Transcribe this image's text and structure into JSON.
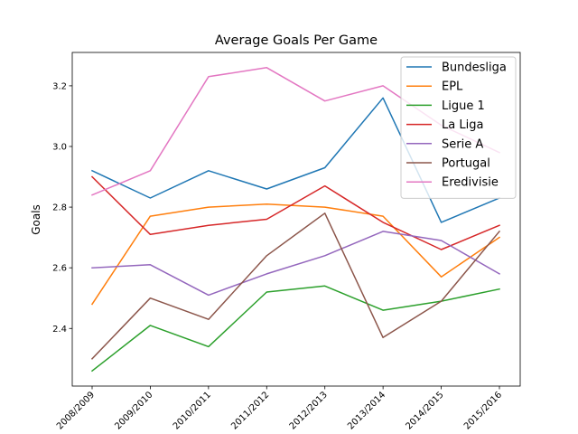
{
  "chart_data": {
    "type": "line",
    "title": "Average Goals Per Game",
    "xlabel": "",
    "ylabel": "Goals",
    "categories": [
      "2008/2009",
      "2009/2010",
      "2010/2011",
      "2011/2012",
      "2012/2013",
      "2013/2014",
      "2014/2015",
      "2015/2016"
    ],
    "ylim": [
      2.21,
      3.31
    ],
    "yticks": [
      2.4,
      2.6,
      2.8,
      3.0,
      3.2
    ],
    "ytick_labels": [
      "2.4",
      "2.6",
      "2.8",
      "3.0",
      "3.2"
    ],
    "grid": false,
    "legend_position": "top-right",
    "series": [
      {
        "name": "Bundesliga",
        "color": "#1f77b4",
        "values": [
          2.92,
          2.83,
          2.92,
          2.86,
          2.93,
          3.16,
          2.75,
          2.83
        ]
      },
      {
        "name": "EPL",
        "color": "#ff7f0e",
        "values": [
          2.48,
          2.77,
          2.8,
          2.81,
          2.8,
          2.77,
          2.57,
          2.7
        ]
      },
      {
        "name": "Ligue 1",
        "color": "#2ca02c",
        "values": [
          2.26,
          2.41,
          2.34,
          2.52,
          2.54,
          2.46,
          2.49,
          2.53
        ]
      },
      {
        "name": "La Liga",
        "color": "#d62728",
        "values": [
          2.9,
          2.71,
          2.74,
          2.76,
          2.87,
          2.75,
          2.66,
          2.74
        ]
      },
      {
        "name": "Serie A",
        "color": "#9467bd",
        "values": [
          2.6,
          2.61,
          2.51,
          2.58,
          2.64,
          2.72,
          2.69,
          2.58
        ]
      },
      {
        "name": "Portugal",
        "color": "#8c564b",
        "values": [
          2.3,
          2.5,
          2.43,
          2.64,
          2.78,
          2.37,
          2.49,
          2.72
        ]
      },
      {
        "name": "Eredivisie",
        "color": "#e377c2",
        "values": [
          2.84,
          2.92,
          3.23,
          3.26,
          3.15,
          3.2,
          3.07,
          2.98
        ]
      }
    ]
  }
}
